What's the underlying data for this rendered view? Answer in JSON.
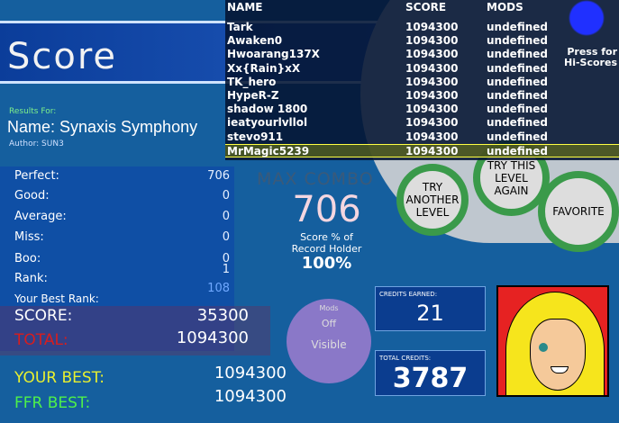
{
  "screen": {
    "title": "Score",
    "results_for": "Results For:",
    "song_name": "Name: Synaxis Symphony",
    "author": "Author: SUN3"
  },
  "judgements": [
    {
      "label": "Perfect:",
      "value": "706"
    },
    {
      "label": "Good:",
      "value": "0"
    },
    {
      "label": "Average:",
      "value": "0"
    },
    {
      "label": "Miss:",
      "value": "0"
    },
    {
      "label": "Boo:",
      "value": "0"
    },
    {
      "label": "",
      "value": "1"
    },
    {
      "label": "Rank:",
      "value": "108"
    }
  ],
  "best": {
    "your_best_rank": "Your Best Rank:",
    "score_label": "SCORE:",
    "score": "35300",
    "total_label": "TOTAL:",
    "total": "1094300",
    "your_best_label": "YOUR BEST:",
    "your_best": "1094300",
    "ffr_best_label": "FFR BEST:",
    "ffr_best": "1094300"
  },
  "combo": {
    "label": "MAX COMBO",
    "value": "706",
    "pct_label_1": "Score % of",
    "pct_label_2": "Record Holder",
    "pct": "100%"
  },
  "mods": {
    "label": "Mods",
    "line1": "Off",
    "line2": "Visible"
  },
  "credits": {
    "earned_label": "CREDITS EARNED:",
    "earned": "21",
    "total_label": "TOTAL CREDITS:",
    "total": "3787"
  },
  "buttons": {
    "try_another": "TRY ANOTHER LEVEL",
    "try_again": "TRY THIS LEVEL AGAIN",
    "favorite": "FAVORITE",
    "hiscores": "Press for Hi-Scores"
  },
  "leaderboard": {
    "headers": {
      "name": "NAME",
      "score": "SCORE",
      "mods": "MODS"
    },
    "rows": [
      {
        "name": "Tark",
        "score": "1094300",
        "mods": "undefined"
      },
      {
        "name": "Awaken0",
        "score": "1094300",
        "mods": "undefined"
      },
      {
        "name": "Hwoarang137X",
        "score": "1094300",
        "mods": "undefined"
      },
      {
        "name": "Xx{Rain}xX",
        "score": "1094300",
        "mods": "undefined"
      },
      {
        "name": "TK_hero",
        "score": "1094300",
        "mods": "undefined"
      },
      {
        "name": "HypeR-Z",
        "score": "1094300",
        "mods": "undefined"
      },
      {
        "name": "shadow 1800",
        "score": "1094300",
        "mods": "undefined"
      },
      {
        "name": "ieatyourlvllol",
        "score": "1094300",
        "mods": "undefined"
      },
      {
        "name": "stevo911",
        "score": "1094300",
        "mods": "undefined"
      },
      {
        "name": "MrMagic5239",
        "score": "1094300",
        "mods": "undefined"
      }
    ],
    "highlight_index": 9
  }
}
